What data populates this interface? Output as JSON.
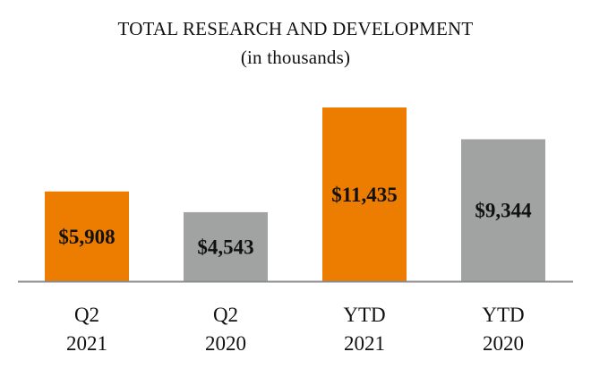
{
  "chart_data": {
    "type": "bar",
    "title": "TOTAL RESEARCH AND DEVELOPMENT",
    "subtitle": "(in thousands)",
    "categories": [
      [
        "Q2",
        "2021"
      ],
      [
        "Q2",
        "2020"
      ],
      [
        "YTD",
        "2021"
      ],
      [
        "YTD",
        "2020"
      ]
    ],
    "values": [
      5908,
      4543,
      11435,
      9344
    ],
    "data_labels": [
      "$5,908",
      "$4,543",
      "$11,435",
      "$9,344"
    ],
    "colors": [
      "#ED7D00",
      "#A0A3A2",
      "#ED7D00",
      "#A0A3A2"
    ],
    "axis_color": "#8C8C8C",
    "ylim": [
      0,
      11435
    ],
    "xlabel": "",
    "ylabel": "",
    "grid": false,
    "legend": "none"
  }
}
